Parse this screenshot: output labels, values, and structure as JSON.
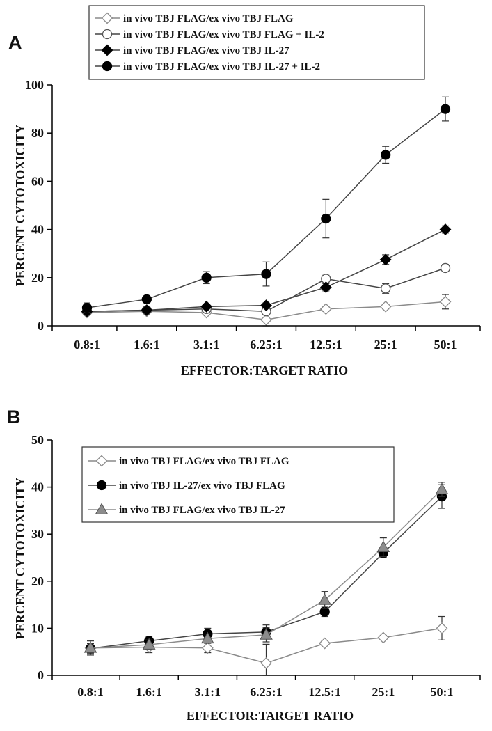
{
  "chart_data": [
    {
      "panel": "A",
      "type": "line",
      "xlabel": "EFFECTOR:TARGET RATIO",
      "ylabel": "PERCENT CYTOTOXICITY",
      "categories": [
        "0.8:1",
        "1.6:1",
        "3.1:1",
        "6.25:1",
        "12.5:1",
        "25:1",
        "50:1"
      ],
      "ylim": [
        0,
        100
      ],
      "yticks": [
        0,
        20,
        40,
        60,
        80,
        100
      ],
      "grid": false,
      "legend": "top",
      "series": [
        {
          "name": "in vivo TBJ FLAG/ex vivo TBJ FLAG",
          "marker": "diamond-open",
          "color": "#8a8a8a",
          "values": [
            5.5,
            6,
            5.5,
            2.5,
            7,
            8,
            10
          ],
          "errors": [
            1,
            1,
            1,
            4,
            1,
            1,
            3
          ]
        },
        {
          "name": "in vivo TBJ FLAG/ex vivo TBJ FLAG  + IL-2",
          "marker": "circle-open",
          "color": "#444444",
          "values": [
            6,
            6.5,
            7,
            6,
            19.5,
            15.5,
            24
          ],
          "errors": [
            1,
            1,
            1,
            1,
            1.5,
            2,
            1.5
          ]
        },
        {
          "name": "in vivo TBJ FLAG/ex vivo TBJ IL-27",
          "marker": "diamond-filled",
          "color": "#444444",
          "values": [
            6,
            6.5,
            8,
            8.5,
            16,
            27.5,
            40
          ],
          "errors": [
            1,
            1,
            1,
            1,
            1.5,
            2,
            1.5
          ]
        },
        {
          "name": "in vivo TBJ FLAG/ex vivo  TBJ IL-27 + IL-2",
          "marker": "circle-filled",
          "color": "#444444",
          "values": [
            7.5,
            11,
            20,
            21.5,
            44.5,
            71,
            90
          ],
          "errors": [
            2,
            1,
            2.5,
            5,
            8,
            3.5,
            5
          ]
        }
      ]
    },
    {
      "panel": "B",
      "type": "line",
      "xlabel": "EFFECTOR:TARGET RATIO",
      "ylabel": "PERCENT CYTOTOXICITY",
      "categories": [
        "0.8:1",
        "1.6:1",
        "3.1:1",
        "6.25:1",
        "12.5:1",
        "25:1",
        "50:1"
      ],
      "ylim": [
        0,
        50
      ],
      "yticks": [
        0,
        10,
        20,
        30,
        40,
        50
      ],
      "grid": false,
      "legend": "top-left",
      "series": [
        {
          "name": "in vivo TBJ FLAG/ex vivo TBJ FLAG",
          "marker": "diamond-open",
          "color": "#8a8a8a",
          "values": [
            5.8,
            6,
            5.8,
            2.6,
            6.8,
            8,
            10
          ],
          "errors": [
            1.5,
            1.2,
            1,
            4,
            0.5,
            0.5,
            2.5
          ]
        },
        {
          "name": "in vivo TBJ IL-27/ex vivo TBJ FLAG",
          "marker": "circle-filled",
          "color": "#444444",
          "values": [
            5.7,
            7.3,
            8.8,
            9.2,
            13.5,
            26,
            38
          ],
          "errors": [
            1,
            1,
            1.2,
            1.5,
            1,
            1,
            2.5
          ]
        },
        {
          "name": "in vivo  TBJ FLAG/ex vivo TBJ IL-27",
          "marker": "triangle-filled",
          "color": "#8c8c8c",
          "values": [
            5.8,
            6.5,
            7.8,
            8.6,
            16,
            27.2,
            39.5
          ],
          "errors": [
            1,
            1,
            1,
            1.5,
            1.8,
            2,
            1.5
          ]
        }
      ]
    }
  ]
}
